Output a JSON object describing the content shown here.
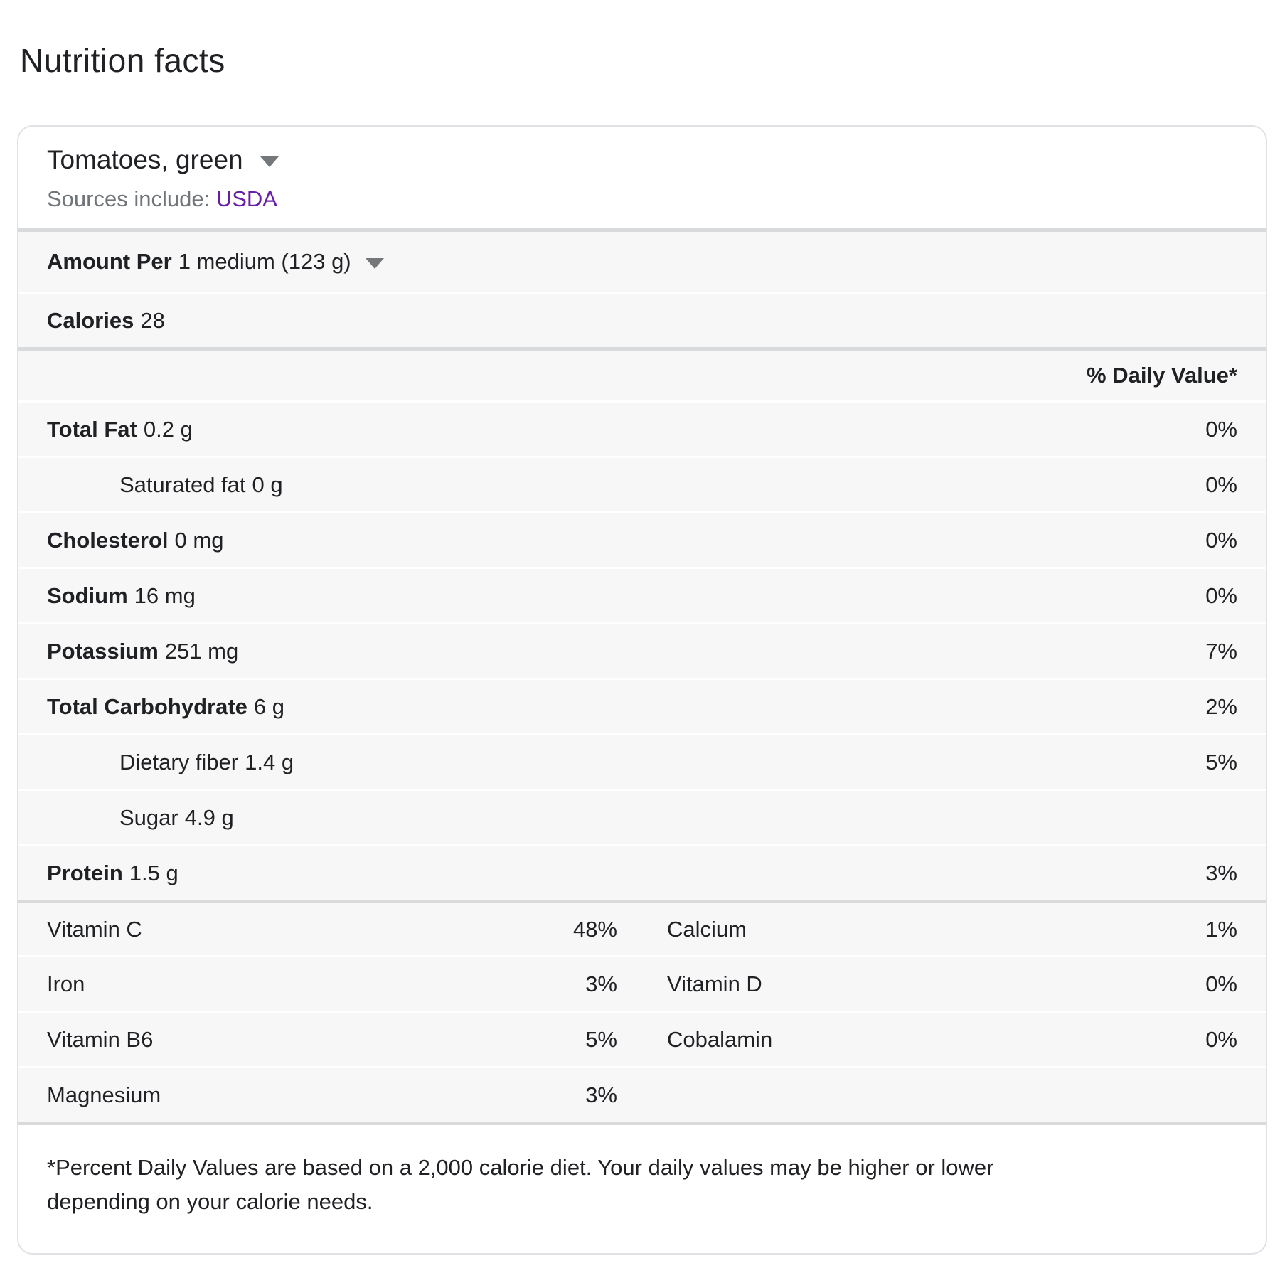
{
  "page": {
    "title": "Nutrition facts"
  },
  "card": {
    "food_selector": {
      "label": "Tomatoes, green"
    },
    "sources": {
      "prefix": "Sources include: ",
      "link": "USDA"
    },
    "serving": {
      "label_bold": "Amount Per",
      "value": "1 medium (123 g)"
    },
    "calories": {
      "label": "Calories",
      "value": "28"
    },
    "daily_value_header": "% Daily Value*",
    "nutrients": [
      {
        "name": "Total Fat",
        "amount": "0.2 g",
        "dv": "0%",
        "bold": true,
        "indent": false
      },
      {
        "name": "Saturated fat",
        "amount": "0 g",
        "dv": "0%",
        "bold": false,
        "indent": true
      },
      {
        "name": "Cholesterol",
        "amount": "0 mg",
        "dv": "0%",
        "bold": true,
        "indent": false
      },
      {
        "name": "Sodium",
        "amount": "16 mg",
        "dv": "0%",
        "bold": true,
        "indent": false
      },
      {
        "name": "Potassium",
        "amount": "251 mg",
        "dv": "7%",
        "bold": true,
        "indent": false
      },
      {
        "name": "Total Carbohydrate",
        "amount": "6 g",
        "dv": "2%",
        "bold": true,
        "indent": false
      },
      {
        "name": "Dietary fiber",
        "amount": "1.4 g",
        "dv": "5%",
        "bold": false,
        "indent": true
      },
      {
        "name": "Sugar",
        "amount": "4.9 g",
        "dv": "",
        "bold": false,
        "indent": true
      },
      {
        "name": "Protein",
        "amount": "1.5 g",
        "dv": "3%",
        "bold": true,
        "indent": false
      }
    ],
    "micronutrients": [
      {
        "left": {
          "name": "Vitamin C",
          "dv": "48%"
        },
        "right": {
          "name": "Calcium",
          "dv": "1%"
        }
      },
      {
        "left": {
          "name": "Iron",
          "dv": "3%"
        },
        "right": {
          "name": "Vitamin D",
          "dv": "0%"
        }
      },
      {
        "left": {
          "name": "Vitamin B6",
          "dv": "5%"
        },
        "right": {
          "name": "Cobalamin",
          "dv": "0%"
        }
      },
      {
        "left": {
          "name": "Magnesium",
          "dv": "3%"
        },
        "right": null
      }
    ],
    "footnote": "*Percent Daily Values are based on a 2,000 calorie diet. Your daily values may be higher or lower depending on your calorie needs."
  },
  "colors": {
    "text": "#202124",
    "secondary_text": "#70757a",
    "link_purple": "#681da8",
    "row_background": "#f7f7f7",
    "thick_divider": "#d9dadc",
    "card_border": "#dfe1e5"
  }
}
